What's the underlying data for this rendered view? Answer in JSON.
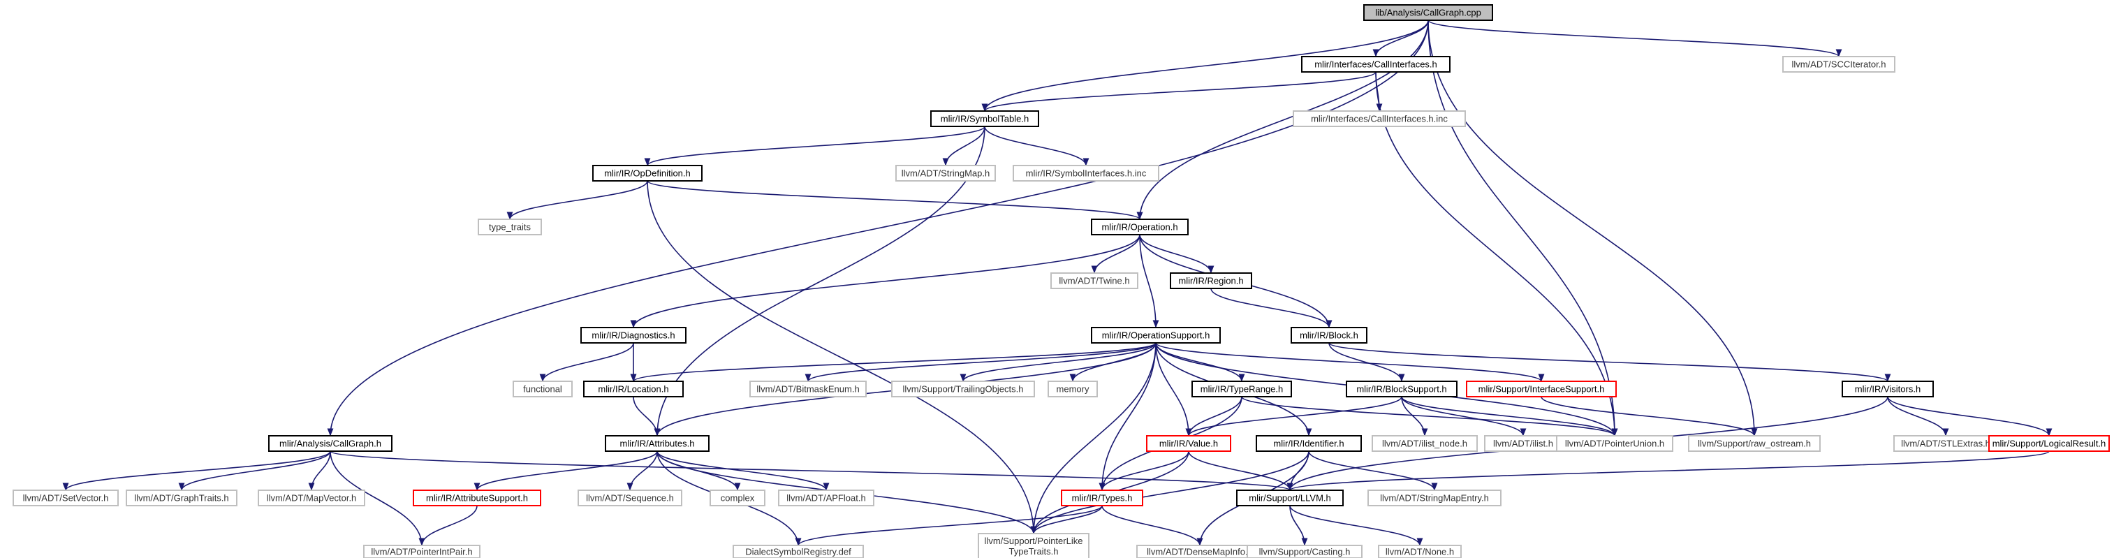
{
  "colors": {
    "edge": "#191970",
    "root_fill": "#bfbfbf",
    "root_border": "#000000",
    "node_border": "#000000",
    "leaf_border": "#bfbfbf",
    "leaf_text": "#333333",
    "truncated_border": "#ff0000",
    "background": "#ffffff"
  },
  "nodes": {
    "callgraph_cpp": {
      "label": "lib/Analysis/CallGraph.cpp",
      "kind": "root"
    },
    "callinterfaces_h": {
      "label": "mlir/Interfaces/CallInterfaces.h",
      "kind": "normal"
    },
    "scciterator_h": {
      "label": "llvm/ADT/SCCIterator.h",
      "kind": "leaf"
    },
    "symboltable_h": {
      "label": "mlir/IR/SymbolTable.h",
      "kind": "normal"
    },
    "callinterfaces_inc": {
      "label": "mlir/Interfaces/CallInterfaces.h.inc",
      "kind": "leaf"
    },
    "opdefinition_h": {
      "label": "mlir/IR/OpDefinition.h",
      "kind": "normal"
    },
    "stringmap_h": {
      "label": "llvm/ADT/StringMap.h",
      "kind": "leaf"
    },
    "symbolinterfaces_inc": {
      "label": "mlir/IR/SymbolInterfaces.h.inc",
      "kind": "leaf"
    },
    "type_traits": {
      "label": "type_traits",
      "kind": "leaf"
    },
    "operation_h": {
      "label": "mlir/IR/Operation.h",
      "kind": "normal"
    },
    "twine_h": {
      "label": "llvm/ADT/Twine.h",
      "kind": "leaf"
    },
    "region_h": {
      "label": "mlir/IR/Region.h",
      "kind": "normal"
    },
    "diagnostics_h": {
      "label": "mlir/IR/Diagnostics.h",
      "kind": "normal"
    },
    "operationsupport_h": {
      "label": "mlir/IR/OperationSupport.h",
      "kind": "normal"
    },
    "block_h": {
      "label": "mlir/IR/Block.h",
      "kind": "normal"
    },
    "functional": {
      "label": "functional",
      "kind": "leaf"
    },
    "location_h": {
      "label": "mlir/IR/Location.h",
      "kind": "normal"
    },
    "bitmaskenum_h": {
      "label": "llvm/ADT/BitmaskEnum.h",
      "kind": "leaf"
    },
    "trailingobjects_h": {
      "label": "llvm/Support/TrailingObjects.h",
      "kind": "leaf"
    },
    "memory": {
      "label": "memory",
      "kind": "leaf"
    },
    "typerange_h": {
      "label": "mlir/IR/TypeRange.h",
      "kind": "normal"
    },
    "interfacesupport_h": {
      "label": "mlir/Support/InterfaceSupport.h",
      "kind": "truncated"
    },
    "blocksupport_h": {
      "label": "mlir/IR/BlockSupport.h",
      "kind": "normal"
    },
    "visitors_h": {
      "label": "mlir/IR/Visitors.h",
      "kind": "normal"
    },
    "analysis_callgraph_h": {
      "label": "mlir/Analysis/CallGraph.h",
      "kind": "normal"
    },
    "attributes_h": {
      "label": "mlir/IR/Attributes.h",
      "kind": "normal"
    },
    "value_h": {
      "label": "mlir/IR/Value.h",
      "kind": "truncated"
    },
    "identifier_h": {
      "label": "mlir/IR/Identifier.h",
      "kind": "normal"
    },
    "ilist_node_h": {
      "label": "llvm/ADT/ilist_node.h",
      "kind": "leaf"
    },
    "ilist_h": {
      "label": "llvm/ADT/ilist.h",
      "kind": "leaf"
    },
    "pointerunion_h": {
      "label": "llvm/ADT/PointerUnion.h",
      "kind": "leaf"
    },
    "raw_ostream_h": {
      "label": "llvm/Support/raw_ostream.h",
      "kind": "leaf"
    },
    "stlextras_h": {
      "label": "llvm/ADT/STLExtras.h",
      "kind": "leaf"
    },
    "logicalresult_h": {
      "label": "mlir/Support/LogicalResult.h",
      "kind": "truncated"
    },
    "setvector_h": {
      "label": "llvm/ADT/SetVector.h",
      "kind": "leaf"
    },
    "graphtraits_h": {
      "label": "llvm/ADT/GraphTraits.h",
      "kind": "leaf"
    },
    "mapvector_h": {
      "label": "llvm/ADT/MapVector.h",
      "kind": "leaf"
    },
    "attributesupport_h": {
      "label": "mlir/IR/AttributeSupport.h",
      "kind": "truncated"
    },
    "sequence_h": {
      "label": "llvm/ADT/Sequence.h",
      "kind": "leaf"
    },
    "complex": {
      "label": "complex",
      "kind": "leaf"
    },
    "apfloat_h": {
      "label": "llvm/ADT/APFloat.h",
      "kind": "leaf"
    },
    "types_h": {
      "label": "mlir/IR/Types.h",
      "kind": "truncated"
    },
    "support_llvm_h": {
      "label": "mlir/Support/LLVM.h",
      "kind": "normal"
    },
    "stringmapentry_h": {
      "label": "llvm/ADT/StringMapEntry.h",
      "kind": "leaf"
    },
    "pointerintpair_h": {
      "label": "llvm/ADT/PointerIntPair.h",
      "kind": "leaf"
    },
    "dialectsymbolregistry_def": {
      "label": "DialectSymbolRegistry.def",
      "kind": "leaf"
    },
    "pointerliketypetraits_h": {
      "label": "llvm/Support/PointerLike\nTypeTraits.h",
      "kind": "leaf"
    },
    "densemapinfo_h": {
      "label": "llvm/ADT/DenseMapInfo.h",
      "kind": "leaf"
    },
    "casting_h": {
      "label": "llvm/Support/Casting.h",
      "kind": "leaf"
    },
    "none_h": {
      "label": "llvm/ADT/None.h",
      "kind": "leaf"
    }
  },
  "edges": [
    [
      "callgraph_cpp",
      "callinterfaces_h"
    ],
    [
      "callgraph_cpp",
      "scciterator_h"
    ],
    [
      "callgraph_cpp",
      "symboltable_h"
    ],
    [
      "callgraph_cpp",
      "operation_h"
    ],
    [
      "callgraph_cpp",
      "analysis_callgraph_h"
    ],
    [
      "callgraph_cpp",
      "pointerunion_h"
    ],
    [
      "callgraph_cpp",
      "raw_ostream_h"
    ],
    [
      "callinterfaces_h",
      "symboltable_h"
    ],
    [
      "callinterfaces_h",
      "callinterfaces_inc"
    ],
    [
      "callinterfaces_h",
      "pointerunion_h"
    ],
    [
      "symboltable_h",
      "opdefinition_h"
    ],
    [
      "symboltable_h",
      "stringmap_h"
    ],
    [
      "symboltable_h",
      "symbolinterfaces_inc"
    ],
    [
      "symboltable_h",
      "attributes_h"
    ],
    [
      "opdefinition_h",
      "type_traits"
    ],
    [
      "opdefinition_h",
      "operation_h"
    ],
    [
      "opdefinition_h",
      "pointerliketypetraits_h"
    ],
    [
      "operation_h",
      "twine_h"
    ],
    [
      "operation_h",
      "region_h"
    ],
    [
      "operation_h",
      "diagnostics_h"
    ],
    [
      "operation_h",
      "operationsupport_h"
    ],
    [
      "operation_h",
      "block_h"
    ],
    [
      "region_h",
      "block_h"
    ],
    [
      "diagnostics_h",
      "functional"
    ],
    [
      "diagnostics_h",
      "location_h"
    ],
    [
      "operationsupport_h",
      "location_h"
    ],
    [
      "operationsupport_h",
      "bitmaskenum_h"
    ],
    [
      "operationsupport_h",
      "trailingobjects_h"
    ],
    [
      "operationsupport_h",
      "memory"
    ],
    [
      "operationsupport_h",
      "typerange_h"
    ],
    [
      "operationsupport_h",
      "interfacesupport_h"
    ],
    [
      "operationsupport_h",
      "attributes_h"
    ],
    [
      "operationsupport_h",
      "value_h"
    ],
    [
      "operationsupport_h",
      "identifier_h"
    ],
    [
      "operationsupport_h",
      "types_h"
    ],
    [
      "operationsupport_h",
      "pointerunion_h"
    ],
    [
      "operationsupport_h",
      "pointerliketypetraits_h"
    ],
    [
      "block_h",
      "blocksupport_h"
    ],
    [
      "block_h",
      "visitors_h"
    ],
    [
      "typerange_h",
      "value_h"
    ],
    [
      "typerange_h",
      "types_h"
    ],
    [
      "typerange_h",
      "pointerunion_h"
    ],
    [
      "interfacesupport_h",
      "raw_ostream_h"
    ],
    [
      "blocksupport_h",
      "value_h"
    ],
    [
      "blocksupport_h",
      "ilist_node_h"
    ],
    [
      "blocksupport_h",
      "ilist_h"
    ],
    [
      "blocksupport_h",
      "pointerunion_h"
    ],
    [
      "visitors_h",
      "stlextras_h"
    ],
    [
      "visitors_h",
      "logicalresult_h"
    ],
    [
      "visitors_h",
      "support_llvm_h"
    ],
    [
      "logicalresult_h",
      "support_llvm_h"
    ],
    [
      "location_h",
      "attributes_h"
    ],
    [
      "analysis_callgraph_h",
      "setvector_h"
    ],
    [
      "analysis_callgraph_h",
      "graphtraits_h"
    ],
    [
      "analysis_callgraph_h",
      "mapvector_h"
    ],
    [
      "analysis_callgraph_h",
      "pointerintpair_h"
    ],
    [
      "analysis_callgraph_h",
      "support_llvm_h"
    ],
    [
      "attributes_h",
      "attributesupport_h"
    ],
    [
      "attributes_h",
      "sequence_h"
    ],
    [
      "attributes_h",
      "complex"
    ],
    [
      "attributes_h",
      "apfloat_h"
    ],
    [
      "attributes_h",
      "pointerliketypetraits_h"
    ],
    [
      "attributes_h",
      "dialectsymbolregistry_def"
    ],
    [
      "attributesupport_h",
      "pointerintpair_h"
    ],
    [
      "value_h",
      "types_h"
    ],
    [
      "value_h",
      "support_llvm_h"
    ],
    [
      "value_h",
      "pointerliketypetraits_h"
    ],
    [
      "identifier_h",
      "support_llvm_h"
    ],
    [
      "identifier_h",
      "stringmapentry_h"
    ],
    [
      "identifier_h",
      "densemapinfo_h"
    ],
    [
      "identifier_h",
      "pointerliketypetraits_h"
    ],
    [
      "types_h",
      "dialectsymbolregistry_def"
    ],
    [
      "types_h",
      "pointerliketypetraits_h"
    ],
    [
      "types_h",
      "densemapinfo_h"
    ],
    [
      "support_llvm_h",
      "casting_h"
    ],
    [
      "support_llvm_h",
      "none_h"
    ]
  ]
}
